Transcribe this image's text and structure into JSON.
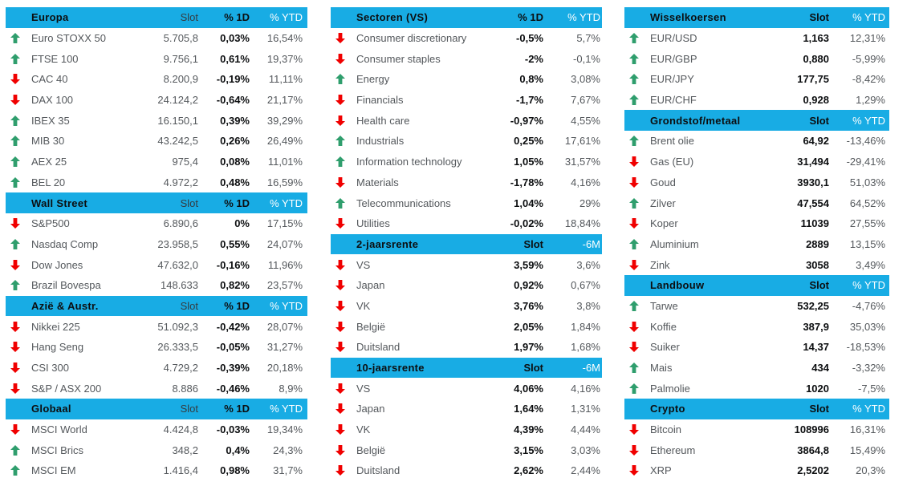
{
  "palette": {
    "header_bg": "#18ace4",
    "up_arrow": "#2f9e6d",
    "down_arrow": "#f00000",
    "text_gray": "#54585c",
    "text_dark": "#0c0e10",
    "header_white": "#ffffff"
  },
  "columns": [
    {
      "name": "indices",
      "sections": [
        {
          "title": "Europa",
          "cols": [
            "Slot",
            "% 1D",
            "% YTD"
          ],
          "header_styles": [
            "muted",
            "bold",
            "white"
          ],
          "value_styles": [
            "gray",
            "bold",
            "gray"
          ],
          "rows": [
            {
              "dir": "up",
              "label": "Euro STOXX 50",
              "values": [
                "5.705,8",
                "0,03%",
                "16,54%"
              ]
            },
            {
              "dir": "up",
              "label": "FTSE 100",
              "values": [
                "9.756,1",
                "0,61%",
                "19,37%"
              ]
            },
            {
              "dir": "down",
              "label": "CAC 40",
              "values": [
                "8.200,9",
                "-0,19%",
                "11,11%"
              ]
            },
            {
              "dir": "down",
              "label": "DAX 100",
              "values": [
                "24.124,2",
                "-0,64%",
                "21,17%"
              ]
            },
            {
              "dir": "up",
              "label": "IBEX 35",
              "values": [
                "16.150,1",
                "0,39%",
                "39,29%"
              ]
            },
            {
              "dir": "up",
              "label": "MIB 30",
              "values": [
                "43.242,5",
                "0,26%",
                "26,49%"
              ]
            },
            {
              "dir": "up",
              "label": "AEX 25",
              "values": [
                "975,4",
                "0,08%",
                "11,01%"
              ]
            },
            {
              "dir": "up",
              "label": "BEL 20",
              "values": [
                "4.972,2",
                "0,48%",
                "16,59%"
              ]
            }
          ]
        },
        {
          "title": "Wall Street",
          "cols": [
            "Slot",
            "% 1D",
            "% YTD"
          ],
          "header_styles": [
            "muted",
            "bold",
            "white"
          ],
          "value_styles": [
            "gray",
            "bold",
            "gray"
          ],
          "rows": [
            {
              "dir": "down",
              "label": "S&P500",
              "values": [
                "6.890,6",
                "0%",
                "17,15%"
              ]
            },
            {
              "dir": "up",
              "label": "Nasdaq Comp",
              "values": [
                "23.958,5",
                "0,55%",
                "24,07%"
              ]
            },
            {
              "dir": "down",
              "label": "Dow Jones",
              "values": [
                "47.632,0",
                "-0,16%",
                "11,96%"
              ]
            },
            {
              "dir": "up",
              "label": "Brazil Bovespa",
              "values": [
                "148.633",
                "0,82%",
                "23,57%"
              ]
            }
          ]
        },
        {
          "title": "Azië & Austr.",
          "cols": [
            "Slot",
            "% 1D",
            "% YTD"
          ],
          "header_styles": [
            "muted",
            "bold",
            "white"
          ],
          "value_styles": [
            "gray",
            "bold",
            "gray"
          ],
          "rows": [
            {
              "dir": "down",
              "label": "Nikkei 225",
              "values": [
                "51.092,3",
                "-0,42%",
                "28,07%"
              ]
            },
            {
              "dir": "down",
              "label": "Hang Seng",
              "values": [
                "26.333,5",
                "-0,05%",
                "31,27%"
              ]
            },
            {
              "dir": "down",
              "label": "CSI 300",
              "values": [
                "4.729,2",
                "-0,39%",
                "20,18%"
              ]
            },
            {
              "dir": "down",
              "label": "S&P / ASX 200",
              "values": [
                "8.886",
                "-0,46%",
                "8,9%"
              ]
            }
          ]
        },
        {
          "title": "Globaal",
          "cols": [
            "Slot",
            "% 1D",
            "% YTD"
          ],
          "header_styles": [
            "muted",
            "bold",
            "white"
          ],
          "value_styles": [
            "gray",
            "bold",
            "gray"
          ],
          "rows": [
            {
              "dir": "down",
              "label": "MSCI World",
              "values": [
                "4.424,8",
                "-0,03%",
                "19,34%"
              ]
            },
            {
              "dir": "up",
              "label": "MSCI Brics",
              "values": [
                "348,2",
                "0,4%",
                "24,3%"
              ]
            },
            {
              "dir": "up",
              "label": "MSCI EM",
              "values": [
                "1.416,4",
                "0,98%",
                "31,7%"
              ]
            }
          ]
        }
      ]
    },
    {
      "name": "sectors-rates",
      "sections": [
        {
          "title": "Sectoren (VS)",
          "cols": [
            "% 1D",
            "% YTD"
          ],
          "header_styles": [
            "bold",
            "white"
          ],
          "value_styles": [
            "bold",
            "gray"
          ],
          "rows": [
            {
              "dir": "down",
              "label": "Consumer discretionary",
              "values": [
                "-0,5%",
                "5,7%"
              ]
            },
            {
              "dir": "down",
              "label": "Consumer staples",
              "values": [
                "-2%",
                "-0,1%"
              ]
            },
            {
              "dir": "up",
              "label": "Energy",
              "values": [
                "0,8%",
                "3,08%"
              ]
            },
            {
              "dir": "down",
              "label": "Financials",
              "values": [
                "-1,7%",
                "7,67%"
              ]
            },
            {
              "dir": "down",
              "label": "Health care",
              "values": [
                "-0,97%",
                "4,55%"
              ]
            },
            {
              "dir": "up",
              "label": "Industrials",
              "values": [
                "0,25%",
                "17,61%"
              ]
            },
            {
              "dir": "up",
              "label": "Information technology",
              "values": [
                "1,05%",
                "31,57%"
              ]
            },
            {
              "dir": "down",
              "label": "Materials",
              "values": [
                "-1,78%",
                "4,16%"
              ]
            },
            {
              "dir": "up",
              "label": "Telecommunications",
              "values": [
                "1,04%",
                "29%"
              ]
            },
            {
              "dir": "down",
              "label": "Utilities",
              "values": [
                "-0,02%",
                "18,84%"
              ]
            }
          ]
        },
        {
          "title": "2-jaarsrente",
          "cols": [
            "Slot",
            "-6M"
          ],
          "header_styles": [
            "bold",
            "white"
          ],
          "value_styles": [
            "bold",
            "gray"
          ],
          "rows": [
            {
              "dir": "down",
              "label": "VS",
              "values": [
                "3,59%",
                "3,6%"
              ]
            },
            {
              "dir": "down",
              "label": "Japan",
              "values": [
                "0,92%",
                "0,67%"
              ]
            },
            {
              "dir": "down",
              "label": "VK",
              "values": [
                "3,76%",
                "3,8%"
              ]
            },
            {
              "dir": "down",
              "label": "België",
              "values": [
                "2,05%",
                "1,84%"
              ]
            },
            {
              "dir": "down",
              "label": "Duitsland",
              "values": [
                "1,97%",
                "1,68%"
              ]
            }
          ]
        },
        {
          "title": "10-jaarsrente",
          "cols": [
            "Slot",
            "-6M"
          ],
          "header_styles": [
            "bold",
            "white"
          ],
          "value_styles": [
            "bold",
            "gray"
          ],
          "rows": [
            {
              "dir": "down",
              "label": "VS",
              "values": [
                "4,06%",
                "4,16%"
              ]
            },
            {
              "dir": "down",
              "label": "Japan",
              "values": [
                "1,64%",
                "1,31%"
              ]
            },
            {
              "dir": "down",
              "label": "VK",
              "values": [
                "4,39%",
                "4,44%"
              ]
            },
            {
              "dir": "down",
              "label": "België",
              "values": [
                "3,15%",
                "3,03%"
              ]
            },
            {
              "dir": "down",
              "label": "Duitsland",
              "values": [
                "2,62%",
                "2,44%"
              ]
            }
          ]
        }
      ]
    },
    {
      "name": "fx-commodities-crypto",
      "sections": [
        {
          "title": "Wisselkoersen",
          "cols": [
            "Slot",
            "% YTD"
          ],
          "header_styles": [
            "bold",
            "white"
          ],
          "value_styles": [
            "bold",
            "gray"
          ],
          "rows": [
            {
              "dir": "up",
              "label": "EUR/USD",
              "values": [
                "1,163",
                "12,31%"
              ]
            },
            {
              "dir": "up",
              "label": "EUR/GBP",
              "values": [
                "0,880",
                "-5,99%"
              ]
            },
            {
              "dir": "up",
              "label": "EUR/JPY",
              "values": [
                "177,75",
                "-8,42%"
              ]
            },
            {
              "dir": "up",
              "label": "EUR/CHF",
              "values": [
                "0,928",
                "1,29%"
              ]
            }
          ]
        },
        {
          "title": "Grondstof/metaal",
          "cols": [
            "Slot",
            "% YTD"
          ],
          "header_styles": [
            "bold",
            "white"
          ],
          "value_styles": [
            "bold",
            "gray"
          ],
          "rows": [
            {
              "dir": "up",
              "label": "Brent olie",
              "values": [
                "64,92",
                "-13,46%"
              ]
            },
            {
              "dir": "down",
              "label": "Gas (EU)",
              "values": [
                "31,494",
                "-29,41%"
              ]
            },
            {
              "dir": "down",
              "label": "Goud",
              "values": [
                "3930,1",
                "51,03%"
              ]
            },
            {
              "dir": "up",
              "label": "Zilver",
              "values": [
                "47,554",
                "64,52%"
              ]
            },
            {
              "dir": "down",
              "label": "Koper",
              "values": [
                "11039",
                "27,55%"
              ]
            },
            {
              "dir": "up",
              "label": "Aluminium",
              "values": [
                "2889",
                "13,15%"
              ]
            },
            {
              "dir": "down",
              "label": "Zink",
              "values": [
                "3058",
                "3,49%"
              ]
            }
          ]
        },
        {
          "title": "Landbouw",
          "cols": [
            "Slot",
            "% YTD"
          ],
          "header_styles": [
            "bold",
            "white"
          ],
          "value_styles": [
            "bold",
            "gray"
          ],
          "rows": [
            {
              "dir": "up",
              "label": "Tarwe",
              "values": [
                "532,25",
                "-4,76%"
              ]
            },
            {
              "dir": "down",
              "label": "Koffie",
              "values": [
                "387,9",
                "35,03%"
              ]
            },
            {
              "dir": "down",
              "label": "Suiker",
              "values": [
                "14,37",
                "-18,53%"
              ]
            },
            {
              "dir": "up",
              "label": "Mais",
              "values": [
                "434",
                "-3,32%"
              ]
            },
            {
              "dir": "up",
              "label": "Palmolie",
              "values": [
                "1020",
                "-7,5%"
              ]
            }
          ]
        },
        {
          "title": "Crypto",
          "cols": [
            "Slot",
            "% YTD"
          ],
          "header_styles": [
            "bold",
            "white"
          ],
          "value_styles": [
            "bold",
            "gray"
          ],
          "rows": [
            {
              "dir": "down",
              "label": "Bitcoin",
              "values": [
                "108996",
                "16,31%"
              ]
            },
            {
              "dir": "down",
              "label": "Ethereum",
              "values": [
                "3864,8",
                "15,49%"
              ]
            },
            {
              "dir": "down",
              "label": "XRP",
              "values": [
                "2,5202",
                "20,3%"
              ]
            }
          ]
        }
      ]
    }
  ]
}
